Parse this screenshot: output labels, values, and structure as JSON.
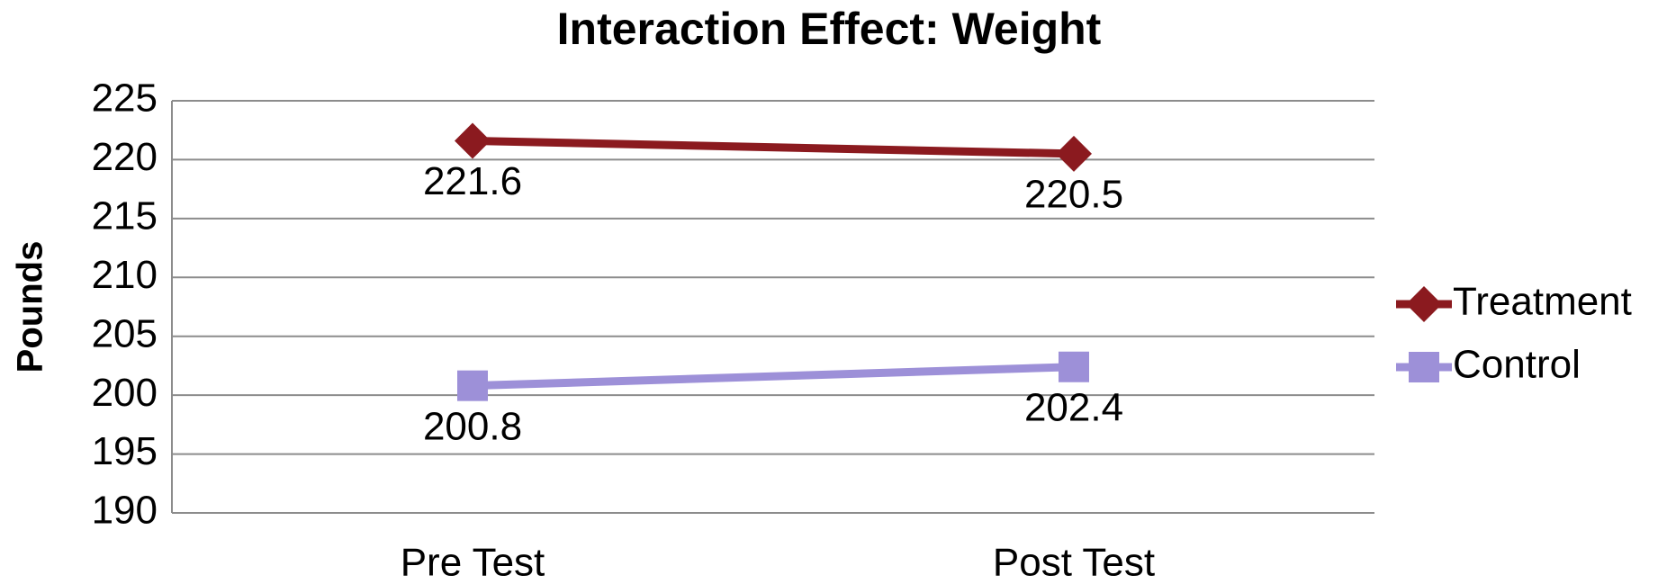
{
  "chart_data": {
    "type": "line",
    "title": "Interaction Effect: Weight",
    "ylabel": "Pounds",
    "categories": [
      "Pre Test",
      "Post Test"
    ],
    "series": [
      {
        "name": "Treatment",
        "color": "#8b1a1f",
        "marker": "diamond",
        "values": [
          221.6,
          220.5
        ]
      },
      {
        "name": "Control",
        "color": "#9d90d8",
        "marker": "square",
        "values": [
          200.8,
          202.4
        ]
      }
    ],
    "ylim": [
      190,
      225
    ],
    "yticks": [
      190,
      195,
      200,
      205,
      210,
      215,
      220,
      225
    ],
    "grid": true,
    "legend": "right"
  }
}
